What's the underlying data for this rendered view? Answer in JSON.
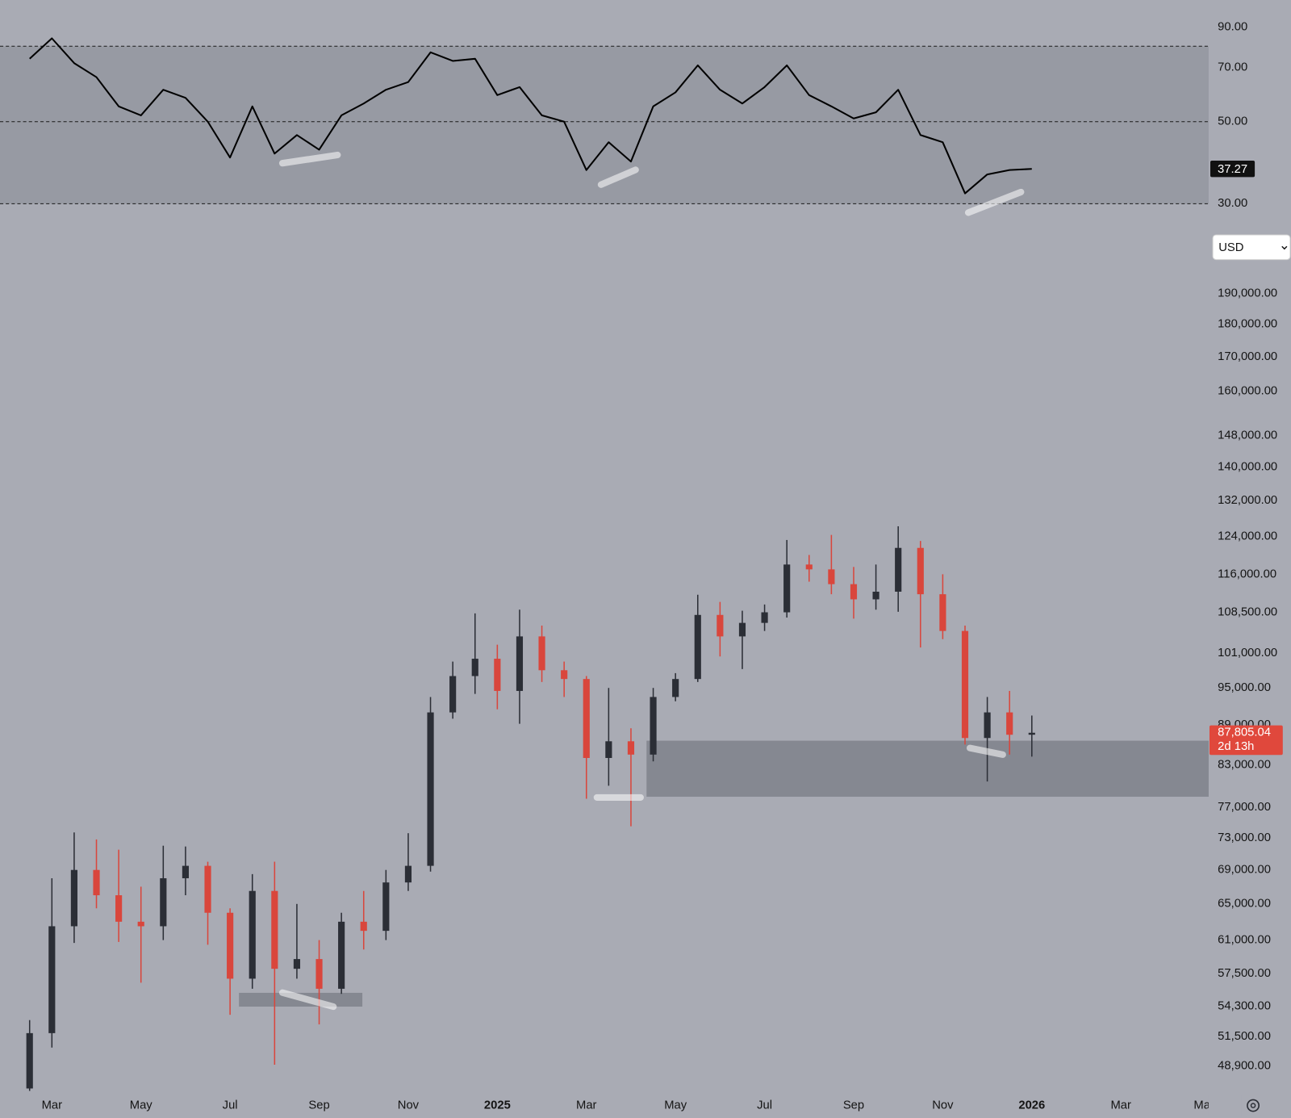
{
  "chart_data": [
    {
      "type": "line",
      "xlim": [
        -0.165,
        26.97
      ],
      "x": [
        0.5,
        1,
        1.5,
        2,
        2.5,
        3,
        3.5,
        4,
        4.5,
        5,
        5.5,
        6,
        6.5,
        7,
        7.5,
        8,
        8.5,
        9,
        9.5,
        10,
        10.5,
        11,
        11.5,
        12,
        12.5,
        13,
        13.5,
        14,
        14.5,
        15,
        15.5,
        16,
        16.5,
        17,
        17.5,
        18,
        18.5,
        19,
        19.5,
        20,
        20.5,
        21,
        21.5,
        22,
        22.5,
        23
      ],
      "values": [
        74,
        84,
        72,
        66,
        55,
        52,
        61,
        58,
        50,
        40,
        55,
        41,
        46,
        42,
        52,
        56,
        61,
        64,
        77,
        73,
        74,
        59,
        62,
        52,
        50,
        37,
        44,
        39,
        55,
        60,
        71,
        61,
        56,
        62,
        71,
        59,
        55,
        51,
        53,
        61,
        46,
        44,
        32,
        36,
        37,
        37.27
      ],
      "color": "#000000",
      "log_scale": true,
      "ylim": [
        27.8,
        106.6
      ],
      "yticks": [
        {
          "value": 90,
          "label": "90.00"
        },
        {
          "value": 70,
          "label": "70.00"
        },
        {
          "value": 50,
          "label": "50.00"
        },
        {
          "value": 30,
          "label": "30.00"
        }
      ],
      "levels": [
        80,
        50,
        30
      ],
      "current": {
        "value": 37.27,
        "label": "37.27"
      }
    },
    {
      "type": "candlestick",
      "currency": "USD",
      "log_scale": true,
      "xlim": [
        -0.165,
        26.97
      ],
      "xticks": [
        {
          "value": 1,
          "label": "Mar"
        },
        {
          "value": 3,
          "label": "May"
        },
        {
          "value": 5,
          "label": "Jul"
        },
        {
          "value": 7,
          "label": "Sep"
        },
        {
          "value": 9,
          "label": "Nov"
        },
        {
          "value": 11,
          "label": "2025"
        },
        {
          "value": 13,
          "label": "Mar"
        },
        {
          "value": 15,
          "label": "May"
        },
        {
          "value": 17,
          "label": "Jul"
        },
        {
          "value": 19,
          "label": "Sep"
        },
        {
          "value": 21,
          "label": "Nov"
        },
        {
          "value": 23,
          "label": "2026"
        },
        {
          "value": 25,
          "label": "Mar"
        },
        {
          "value": 26.82,
          "label": "Ma"
        }
      ],
      "ylim": [
        46750,
        217700
      ],
      "yticks": [
        {
          "value": 190000,
          "label": "190,000.00"
        },
        {
          "value": 180000,
          "label": "180,000.00"
        },
        {
          "value": 170000,
          "label": "170,000.00"
        },
        {
          "value": 160000,
          "label": "160,000.00"
        },
        {
          "value": 148000,
          "label": "148,000.00"
        },
        {
          "value": 140000,
          "label": "140,000.00"
        },
        {
          "value": 132000,
          "label": "132,000.00"
        },
        {
          "value": 124000,
          "label": "124,000.00"
        },
        {
          "value": 116000,
          "label": "116,000.00"
        },
        {
          "value": 108500,
          "label": "108,500.00"
        },
        {
          "value": 101000,
          "label": "101,000.00"
        },
        {
          "value": 95000,
          "label": "95,000.00"
        },
        {
          "value": 89000,
          "label": "89,000.00"
        },
        {
          "value": 83000,
          "label": "83,000.00"
        },
        {
          "value": 77000,
          "label": "77,000.00"
        },
        {
          "value": 73000,
          "label": "73,000.00"
        },
        {
          "value": 69000,
          "label": "69,000.00"
        },
        {
          "value": 65000,
          "label": "65,000.00"
        },
        {
          "value": 61000,
          "label": "61,000.00"
        },
        {
          "value": 57500,
          "label": "57,500.00"
        },
        {
          "value": 54300,
          "label": "54,300.00"
        },
        {
          "value": 51500,
          "label": "51,500.00"
        },
        {
          "value": 48900,
          "label": "48,900.00"
        }
      ],
      "up_color": "#2b2e36",
      "down_color": "#d9463c",
      "x": [
        0.5,
        1,
        1.5,
        2,
        2.5,
        3,
        3.5,
        4,
        4.5,
        5,
        5.5,
        6,
        6.5,
        7,
        7.5,
        8,
        8.5,
        9,
        9.5,
        10,
        10.5,
        11,
        11.5,
        12,
        12.5,
        13,
        13.5,
        14,
        14.5,
        15,
        15.5,
        16,
        16.5,
        17,
        17.5,
        18,
        18.5,
        19,
        19.5,
        20,
        20.5,
        21,
        21.5,
        22,
        22.5,
        23
      ],
      "open": [
        47000,
        51800,
        62500,
        69000,
        66000,
        63000,
        62500,
        68000,
        69500,
        64000,
        57000,
        66500,
        58000,
        59000,
        56000,
        63000,
        62000,
        67500,
        69500,
        91000,
        97000,
        100000,
        94500,
        104000,
        98000,
        96500,
        84000,
        86500,
        84500,
        93500,
        96500,
        108000,
        104000,
        106500,
        108500,
        118000,
        117000,
        114000,
        111000,
        112500,
        121500,
        112000,
        105000,
        87000,
        91000,
        87500
      ],
      "high": [
        53000,
        68000,
        73700,
        72800,
        71500,
        67000,
        72000,
        71900,
        70000,
        64500,
        68500,
        70000,
        65000,
        61000,
        64000,
        66500,
        69000,
        73600,
        93500,
        99500,
        108300,
        102500,
        109000,
        106000,
        99500,
        97000,
        95000,
        88500,
        95000,
        97500,
        111900,
        110500,
        108800,
        110000,
        123200,
        120000,
        124300,
        117500,
        118000,
        126200,
        123000,
        116000,
        106000,
        93500,
        94500,
        90500
      ],
      "low": [
        46800,
        50500,
        60700,
        64500,
        60800,
        56600,
        61000,
        66000,
        60500,
        53500,
        56000,
        49000,
        57000,
        52600,
        55500,
        60000,
        61000,
        66500,
        68800,
        90000,
        94000,
        91500,
        89200,
        96000,
        93500,
        78200,
        80000,
        74500,
        83500,
        92800,
        96000,
        100400,
        98200,
        105000,
        107500,
        114500,
        112000,
        107300,
        109000,
        108600,
        102000,
        103500,
        86000,
        80600,
        84500,
        84200
      ],
      "close": [
        51800,
        62500,
        69000,
        66000,
        63000,
        62500,
        68000,
        69500,
        64000,
        57000,
        66500,
        58000,
        59000,
        56000,
        63000,
        62000,
        67500,
        69500,
        91000,
        97000,
        100000,
        94500,
        104000,
        98000,
        96500,
        84000,
        86500,
        84500,
        93500,
        96500,
        108000,
        104000,
        106500,
        108500,
        118000,
        117000,
        114000,
        111000,
        112500,
        121500,
        112000,
        105000,
        87000,
        91000,
        87500,
        87805.04
      ],
      "zones": [
        {
          "x0": 14.35,
          "x1": 26.97,
          "y0": 78470,
          "y1": 86590
        },
        {
          "x0": 5.2,
          "x1": 7.97,
          "y0": 54270,
          "y1": 55600
        }
      ],
      "last_price": {
        "value": 87805.04,
        "label": "87,805.04"
      },
      "countdown": "2d 13h"
    }
  ]
}
